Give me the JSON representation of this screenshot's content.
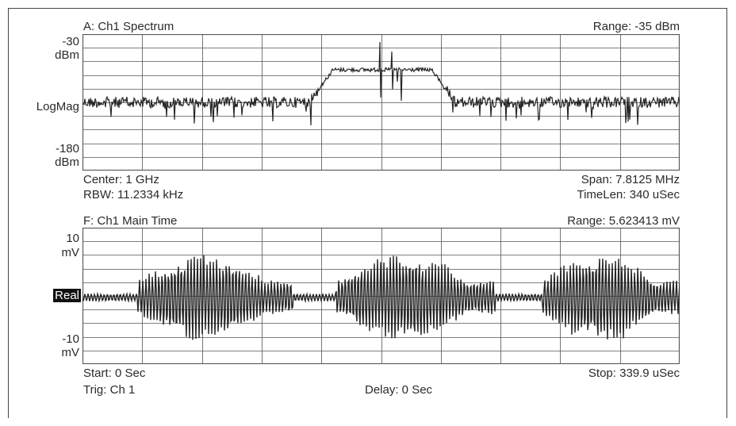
{
  "spectrum": {
    "header": "A: Ch1 Spectrum",
    "range": "Range: -35 dBm",
    "y_top_value": "-30",
    "y_top_unit": "dBm",
    "y_mid": "LogMag",
    "y_bottom_value": "-180",
    "y_bottom_unit": "dBm",
    "center": "Center: 1 GHz",
    "rbw": "RBW: 11.2334 kHz",
    "span": "Span: 7.8125 MHz",
    "timelen": "TimeLen: 340 uSec"
  },
  "time": {
    "header": "F: Ch1 Main Time",
    "range": "Range: 5.623413 mV",
    "y_top_value": "10",
    "y_top_unit": "mV",
    "y_mid": "Real",
    "y_bottom_value": "-10",
    "y_bottom_unit": "mV",
    "start": "Start: 0  Sec",
    "stop": "Stop: 339.9 uSec",
    "trig": "Trig: Ch 1",
    "delay": "Delay: 0  Sec"
  },
  "colors": {
    "grid": "#555555",
    "trace": "#262626",
    "text": "#2a2a2a"
  }
}
